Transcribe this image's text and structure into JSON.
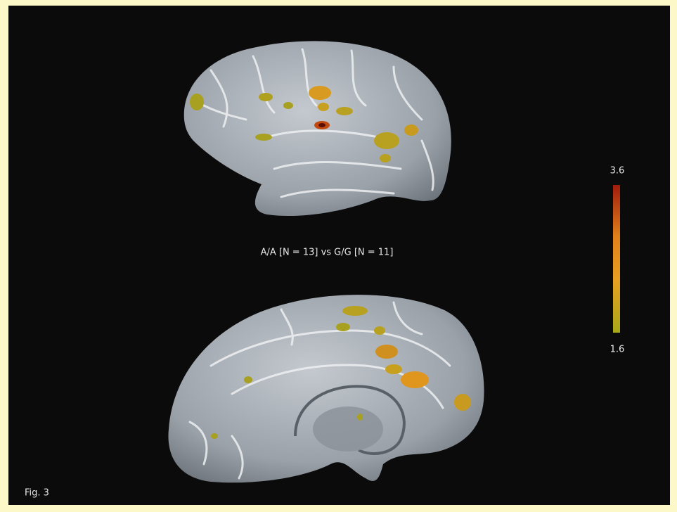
{
  "caption": "A/A [N = 13] vs G/G [N = 11]",
  "colorbar": {
    "max": 3.6,
    "min": 1.6
  },
  "figure_label": "Fig. 3"
}
